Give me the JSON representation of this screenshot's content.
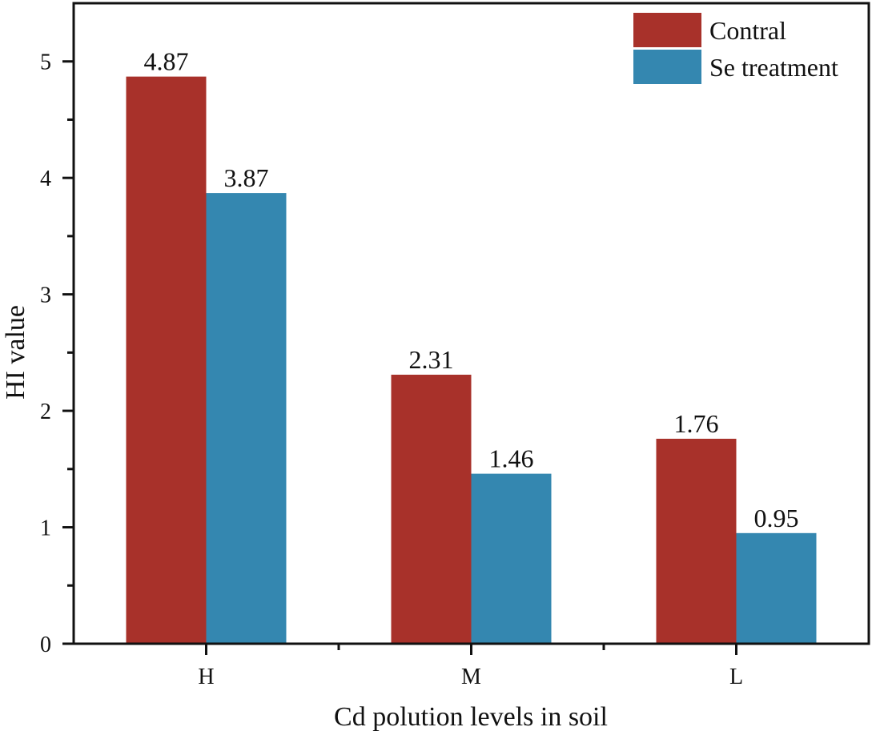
{
  "chart_data": {
    "type": "bar",
    "title": "",
    "xlabel": "Cd polution levels in soil",
    "ylabel": "HI value",
    "categories": [
      "H",
      "M",
      "L"
    ],
    "series": [
      {
        "name": "Contral",
        "color": "#a8312a",
        "values": [
          4.87,
          2.31,
          1.76
        ],
        "labels": [
          "4.87",
          "2.31",
          "1.76"
        ]
      },
      {
        "name": "Se treatment",
        "color": "#3487b0",
        "values": [
          3.87,
          1.46,
          0.95
        ],
        "labels": [
          "3.87",
          "1.46",
          "0.95"
        ]
      }
    ],
    "ylim": [
      0,
      5.5
    ],
    "yticks": [
      0,
      1,
      2,
      3,
      4,
      5
    ],
    "ytick_labels": [
      "0",
      "1",
      "2",
      "3",
      "4",
      "5"
    ],
    "y_minor_step": 0.5,
    "grid": false,
    "legend_position": "top-right"
  }
}
